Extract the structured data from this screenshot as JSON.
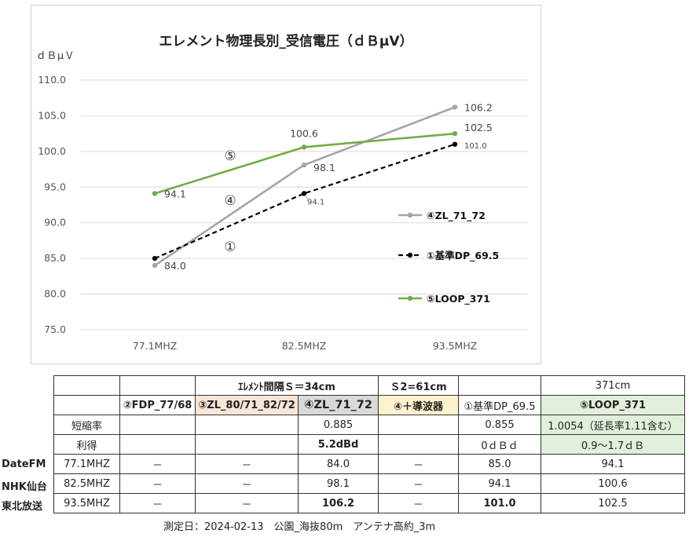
{
  "chart_data": {
    "type": "line",
    "title": "エレメント物理長別_受信電圧（ｄＢμV）",
    "ylabel": "ｄＢμＶ",
    "xlabel": "",
    "categories": [
      "77.1MHZ",
      "82.5MHZ",
      "93.5MHZ"
    ],
    "ylim": [
      75,
      110
    ],
    "yticks": [
      "75.0",
      "80.0",
      "85.0",
      "90.0",
      "95.0",
      "100.0",
      "105.0",
      "110.0"
    ],
    "grid": true,
    "legend_position": "right",
    "series": [
      {
        "name": "④ZL_71_72",
        "values": [
          84.0,
          98.1,
          106.2
        ],
        "labels": [
          "84.0",
          "98.1",
          "106.2"
        ],
        "color": "#a5a5a5",
        "dash": "solid",
        "label_size": "normal"
      },
      {
        "name": "①基準DP_69.5",
        "values": [
          85.0,
          94.1,
          101.0
        ],
        "labels": [
          "",
          "94.1",
          "101.0"
        ],
        "color": "#000000",
        "dash": "dashed",
        "label_size": "small"
      },
      {
        "name": "⑤LOOP_371",
        "values": [
          94.1,
          100.6,
          102.5
        ],
        "labels": [
          "94.1",
          "100.6",
          "102.5"
        ],
        "color": "#70ad47",
        "dash": "solid",
        "label_size": "normal"
      }
    ],
    "annotations": [
      "⑤",
      "④",
      "①"
    ]
  },
  "table": {
    "header1": [
      "",
      "",
      "ｴﾚﾒﾝﾄ間隔Ｓ＝34cm",
      "Ｓ2=61cm",
      "",
      "371cm"
    ],
    "header2": [
      "",
      "②FDP_77/68",
      "③ZL_80/71_82/72",
      "④ZL_71_72",
      "④＋導波器",
      "①基準DP_69.5",
      "⑤LOOP_371"
    ],
    "shortening": {
      "label": "短縮率",
      "zl": "0.885",
      "dp": "0.855",
      "loop": "1.0054（延長率1.11含む）"
    },
    "gain": {
      "label": "利得",
      "zl": "5.2dBd",
      "dp": "0ｄＢｄ",
      "loop": "0.9～1.7ｄＢ"
    },
    "rows": [
      {
        "station": "DateFM",
        "freq": "77.1MHZ",
        "fdp": "－",
        "zl80": "－",
        "zl71": "84.0",
        "dir": "－",
        "dp": "85.0",
        "loop": "94.1"
      },
      {
        "station": "NHK仙台",
        "freq": "82.5MHZ",
        "fdp": "－",
        "zl80": "－",
        "zl71": "98.1",
        "dir": "－",
        "dp": "94.1",
        "loop": "100.6"
      },
      {
        "station": "東北放送",
        "freq": "93.5MHZ",
        "fdp": "－",
        "zl80": "－",
        "zl71": "106.2",
        "dir": "－",
        "dp": "101.0",
        "loop": "102.5"
      }
    ]
  },
  "footer": "測定日：2024-02-13　公園_海抜80m　アンテナ高約_3m"
}
